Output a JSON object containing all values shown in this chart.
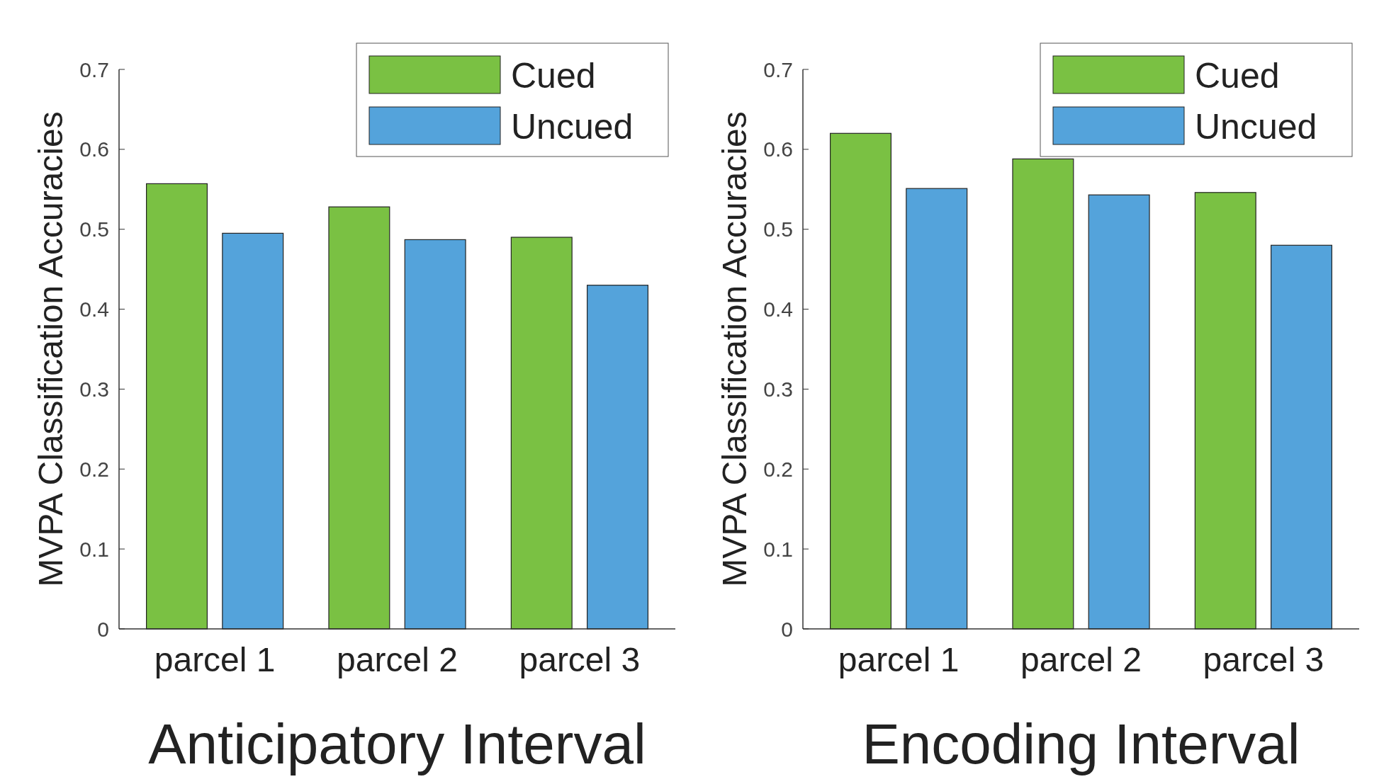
{
  "chart_data": [
    {
      "type": "bar",
      "title": "Anticipatory Interval",
      "ylabel": "MVPA Classification Accuracies",
      "categories": [
        "parcel 1",
        "parcel 2",
        "parcel 3"
      ],
      "series": [
        {
          "name": "Cued",
          "color": "#7ac143",
          "values": [
            0.557,
            0.528,
            0.49
          ]
        },
        {
          "name": "Uncued",
          "color": "#54a3db",
          "values": [
            0.495,
            0.487,
            0.43
          ]
        }
      ],
      "ylim": [
        0,
        0.7
      ],
      "yticks": [
        0,
        0.1,
        0.2,
        0.3,
        0.4,
        0.5,
        0.6,
        0.7
      ],
      "legend": "top right",
      "grid": false
    },
    {
      "type": "bar",
      "title": "Encoding Interval",
      "ylabel": "MVPA Classification Accuracies",
      "categories": [
        "parcel 1",
        "parcel 2",
        "parcel 3"
      ],
      "series": [
        {
          "name": "Cued",
          "color": "#7ac143",
          "values": [
            0.62,
            0.588,
            0.546
          ]
        },
        {
          "name": "Uncued",
          "color": "#54a3db",
          "values": [
            0.551,
            0.543,
            0.48
          ]
        }
      ],
      "ylim": [
        0,
        0.7
      ],
      "yticks": [
        0,
        0.1,
        0.2,
        0.3,
        0.4,
        0.5,
        0.6,
        0.7
      ],
      "legend": "top right",
      "grid": false
    }
  ]
}
